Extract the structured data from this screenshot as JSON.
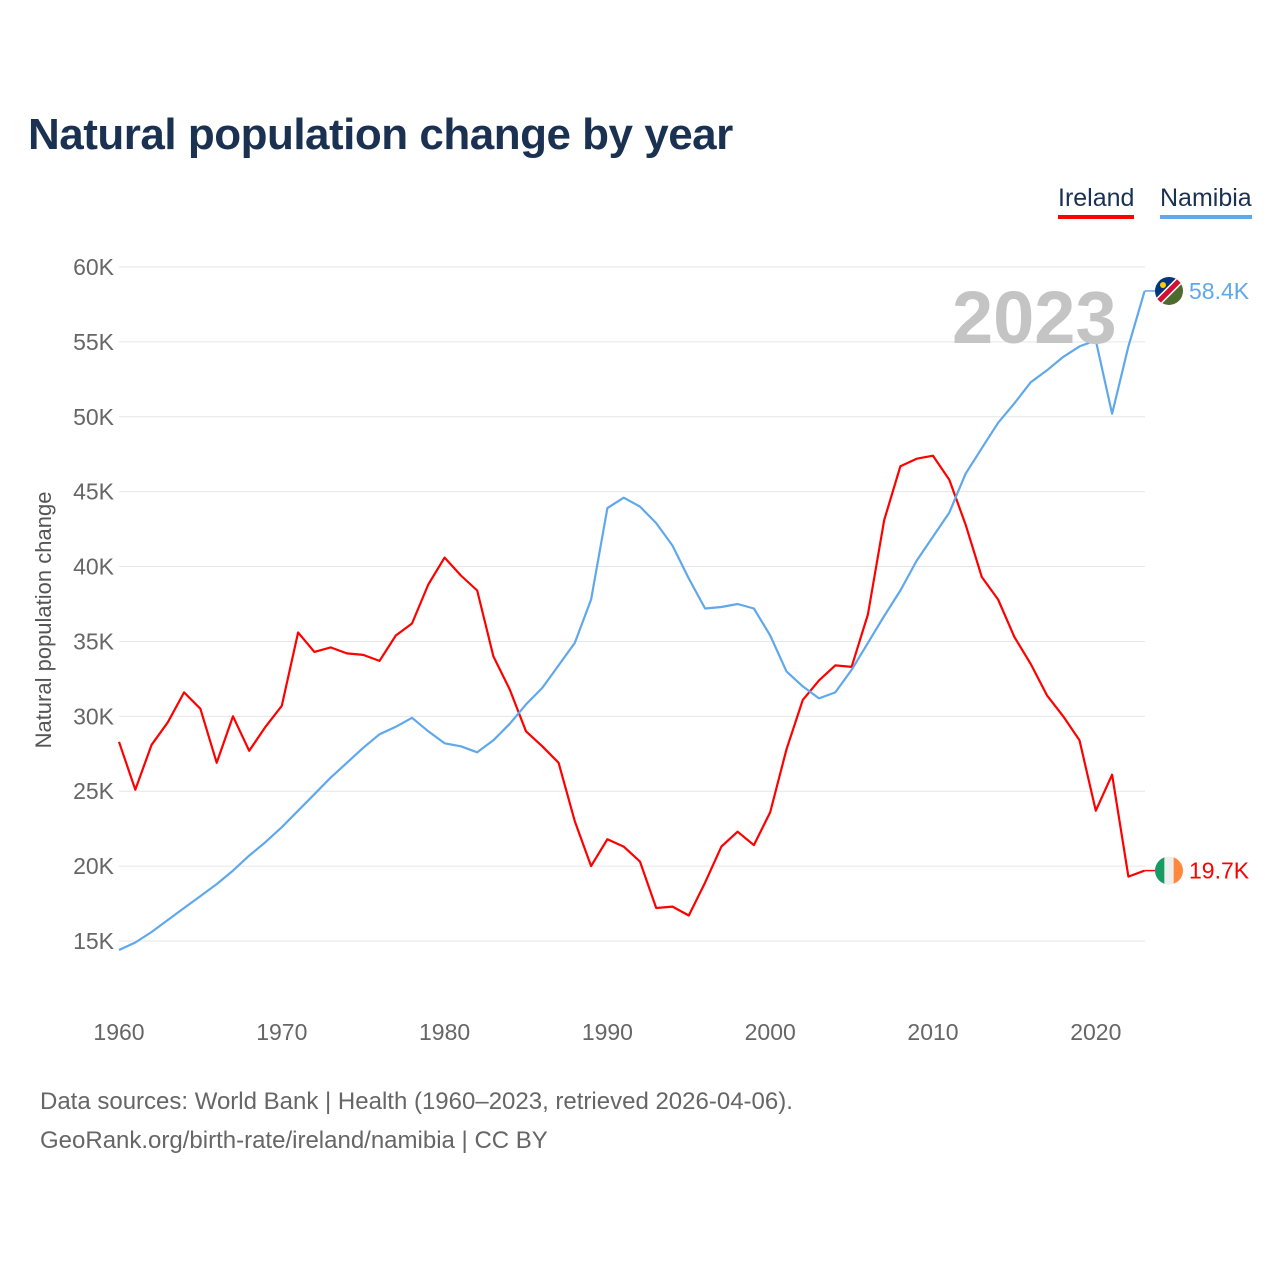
{
  "title": "Natural population change by year",
  "current_year": "2023",
  "sources": {
    "line1": "Data sources: World Bank | Health (1960–2023, retrieved 2026-04-06).",
    "line2": "GeoRank.org/birth-rate/ireland/namibia | CC BY"
  },
  "chart_data": {
    "type": "line",
    "title": "Natural population change by year",
    "xlabel": "",
    "ylabel": "Natural population change",
    "xlim": [
      1960,
      2023
    ],
    "ylim": [
      15000,
      60000
    ],
    "x_ticks": [
      "1960",
      "1970",
      "1980",
      "1990",
      "2000",
      "2010",
      "2020"
    ],
    "y_ticks": [
      "15K",
      "20K",
      "25K",
      "30K",
      "35K",
      "40K",
      "45K",
      "50K",
      "55K",
      "60K"
    ],
    "grid": true,
    "legend_position": "top-right",
    "x": [
      1960,
      1961,
      1962,
      1963,
      1964,
      1965,
      1966,
      1967,
      1968,
      1969,
      1970,
      1971,
      1972,
      1973,
      1974,
      1975,
      1976,
      1977,
      1978,
      1979,
      1980,
      1981,
      1982,
      1983,
      1984,
      1985,
      1986,
      1987,
      1988,
      1989,
      1990,
      1991,
      1992,
      1993,
      1994,
      1995,
      1996,
      1997,
      1998,
      1999,
      2000,
      2001,
      2002,
      2003,
      2004,
      2005,
      2006,
      2007,
      2008,
      2009,
      2010,
      2011,
      2012,
      2013,
      2014,
      2015,
      2016,
      2017,
      2018,
      2019,
      2020,
      2021,
      2022,
      2023
    ],
    "series": [
      {
        "name": "Ireland",
        "color": "#ff0000",
        "end_label": "19.7K",
        "flag": "ireland-flag",
        "values": [
          28300,
          25100,
          28100,
          29600,
          31600,
          30500,
          26900,
          30000,
          27700,
          29300,
          30700,
          35600,
          34300,
          34600,
          34200,
          34100,
          33700,
          35400,
          36200,
          38800,
          40600,
          39400,
          38400,
          34000,
          31800,
          29000,
          28000,
          26900,
          23000,
          20000,
          21800,
          21300,
          20300,
          17200,
          17300,
          16700,
          18900,
          21300,
          22300,
          21400,
          23600,
          27800,
          31100,
          32400,
          33400,
          33300,
          36800,
          43100,
          46700,
          47200,
          47400,
          45800,
          42800,
          39300,
          37800,
          35300,
          33500,
          31400,
          30000,
          28400,
          23700,
          26100,
          19300,
          19700
        ]
      },
      {
        "name": "Namibia",
        "color": "#5fa8ec",
        "end_label": "58.4K",
        "flag": "namibia-flag",
        "values": [
          14400,
          14900,
          15600,
          16400,
          17200,
          18000,
          18800,
          19700,
          20700,
          21600,
          22600,
          23700,
          24800,
          25900,
          26900,
          27900,
          28800,
          29300,
          29900,
          29000,
          28200,
          28000,
          27600,
          28400,
          29500,
          30800,
          31900,
          33400,
          34900,
          37800,
          43900,
          44600,
          44000,
          42900,
          41400,
          39200,
          37200,
          37300,
          37500,
          37200,
          35400,
          33000,
          32000,
          31200,
          31600,
          33100,
          34900,
          36700,
          38400,
          40400,
          42000,
          43600,
          46200,
          47900,
          49600,
          50900,
          52300,
          53100,
          54000,
          54700,
          55100,
          50200,
          54700,
          58400
        ]
      }
    ]
  }
}
